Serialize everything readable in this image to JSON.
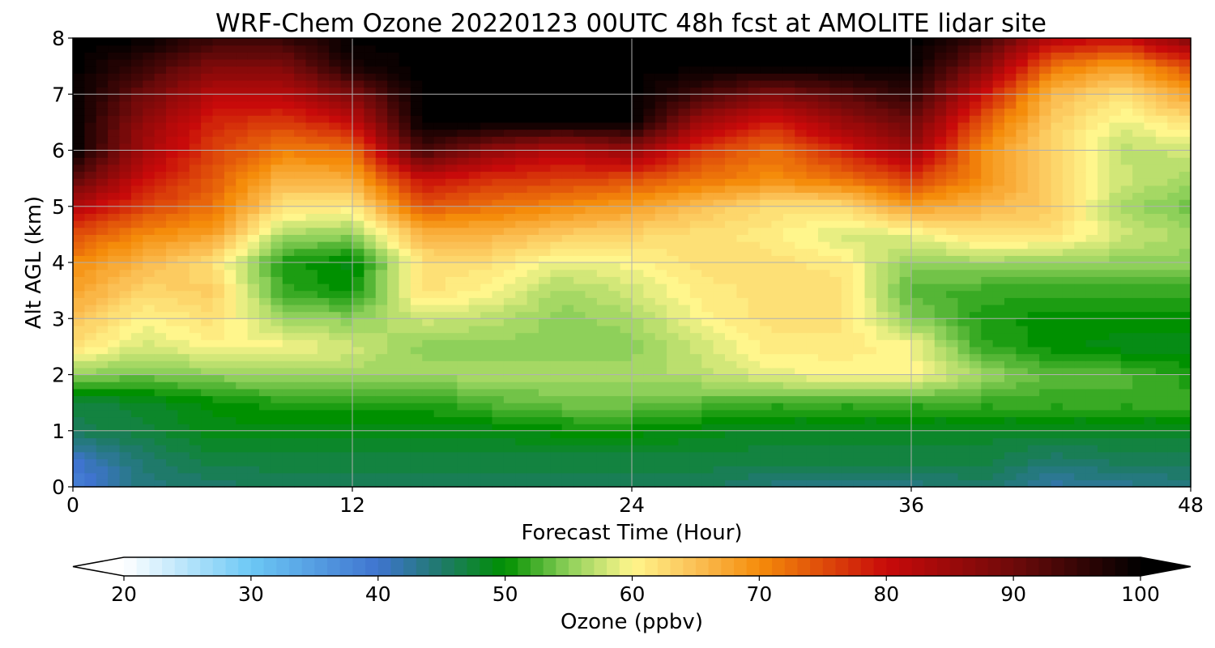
{
  "chart_data": {
    "type": "heatmap",
    "title": "WRF-Chem Ozone  20220123 00UTC 48h fcst at AMOLITE lidar site",
    "xlabel": "Forecast Time (Hour)",
    "ylabel": "Alt AGL (km)",
    "xlim": [
      0,
      48
    ],
    "ylim": [
      0,
      8
    ],
    "xticks": [
      0,
      12,
      24,
      36,
      48
    ],
    "yticks": [
      0,
      1,
      2,
      3,
      4,
      5,
      6,
      7,
      8
    ],
    "grid": true,
    "colorbar": {
      "label": "Ozone  (ppbv)",
      "min": 20,
      "max": 100,
      "ticks": [
        20,
        30,
        40,
        50,
        60,
        70,
        80,
        90,
        100
      ],
      "extend": "both",
      "orientation": "horizontal",
      "stops": [
        {
          "value": 20,
          "color": "#ffffff"
        },
        {
          "value": 30,
          "color": "#6cc8f5"
        },
        {
          "value": 40,
          "color": "#3f74cf"
        },
        {
          "value": 45,
          "color": "#1f7a6a"
        },
        {
          "value": 50,
          "color": "#009000"
        },
        {
          "value": 55,
          "color": "#8ed05a"
        },
        {
          "value": 60,
          "color": "#fff68c"
        },
        {
          "value": 65,
          "color": "#fbc055"
        },
        {
          "value": 70,
          "color": "#f58c0a"
        },
        {
          "value": 80,
          "color": "#c80a0a"
        },
        {
          "value": 90,
          "color": "#6e0a0a"
        },
        {
          "value": 100,
          "color": "#000000"
        }
      ]
    },
    "x": [
      0,
      3,
      6,
      9,
      12,
      15,
      18,
      21,
      24,
      27,
      30,
      33,
      36,
      39,
      42,
      45,
      48
    ],
    "y": [
      0,
      0.5,
      1,
      1.5,
      2,
      2.5,
      3,
      3.5,
      4,
      4.5,
      5,
      5.5,
      6,
      6.5,
      7,
      7.5,
      8
    ],
    "z": [
      [
        38,
        44,
        45,
        46,
        46,
        46,
        46,
        46,
        46,
        46,
        44,
        44,
        44,
        45,
        42,
        43,
        44
      ],
      [
        40,
        45,
        47,
        47,
        47,
        47,
        47,
        47,
        47,
        47,
        47,
        47,
        47,
        47,
        45,
        46,
        46
      ],
      [
        46,
        47,
        49,
        49,
        49,
        49,
        49,
        50,
        50,
        49,
        48,
        48,
        48,
        48,
        48,
        48,
        48
      ],
      [
        47,
        48,
        50,
        51,
        51,
        51,
        53,
        54,
        54,
        53,
        52,
        52,
        52,
        52,
        52,
        52,
        52
      ],
      [
        55,
        54,
        55,
        56,
        56,
        56,
        56,
        56,
        56,
        57,
        59,
        60,
        60,
        56,
        53,
        53,
        51
      ],
      [
        62,
        58,
        60,
        60,
        58,
        55,
        55,
        55,
        55,
        58,
        61,
        61,
        60,
        52,
        50,
        49,
        49
      ],
      [
        65,
        60,
        62,
        56,
        55,
        58,
        57,
        55,
        56,
        60,
        62,
        62,
        55,
        51,
        50,
        50,
        50
      ],
      [
        68,
        63,
        64,
        52,
        50,
        62,
        60,
        56,
        58,
        61,
        62,
        62,
        53,
        52,
        52,
        52,
        52
      ],
      [
        70,
        66,
        62,
        51,
        49,
        62,
        62,
        59,
        60,
        62,
        62,
        61,
        55,
        56,
        55,
        55,
        55
      ],
      [
        75,
        70,
        68,
        56,
        55,
        66,
        66,
        64,
        63,
        62,
        61,
        58,
        59,
        62,
        62,
        58,
        56
      ],
      [
        82,
        76,
        72,
        62,
        61,
        74,
        72,
        70,
        68,
        65,
        62,
        62,
        68,
        66,
        64,
        56,
        54
      ],
      [
        92,
        80,
        74,
        66,
        67,
        80,
        77,
        76,
        75,
        72,
        70,
        72,
        76,
        70,
        64,
        58,
        56
      ],
      [
        100,
        84,
        76,
        71,
        72,
        94,
        86,
        82,
        86,
        76,
        72,
        78,
        85,
        70,
        63,
        57,
        58
      ],
      [
        100,
        86,
        78,
        76,
        80,
        100,
        100,
        100,
        100,
        84,
        78,
        85,
        90,
        74,
        64,
        59,
        62
      ],
      [
        100,
        90,
        82,
        82,
        88,
        100,
        100,
        100,
        100,
        94,
        88,
        92,
        96,
        80,
        66,
        62,
        68
      ],
      [
        100,
        95,
        88,
        88,
        98,
        100,
        100,
        100,
        100,
        100,
        100,
        100,
        100,
        88,
        72,
        68,
        75
      ],
      [
        100,
        100,
        95,
        95,
        100,
        100,
        100,
        100,
        100,
        100,
        100,
        100,
        100,
        95,
        82,
        80,
        88
      ]
    ]
  }
}
